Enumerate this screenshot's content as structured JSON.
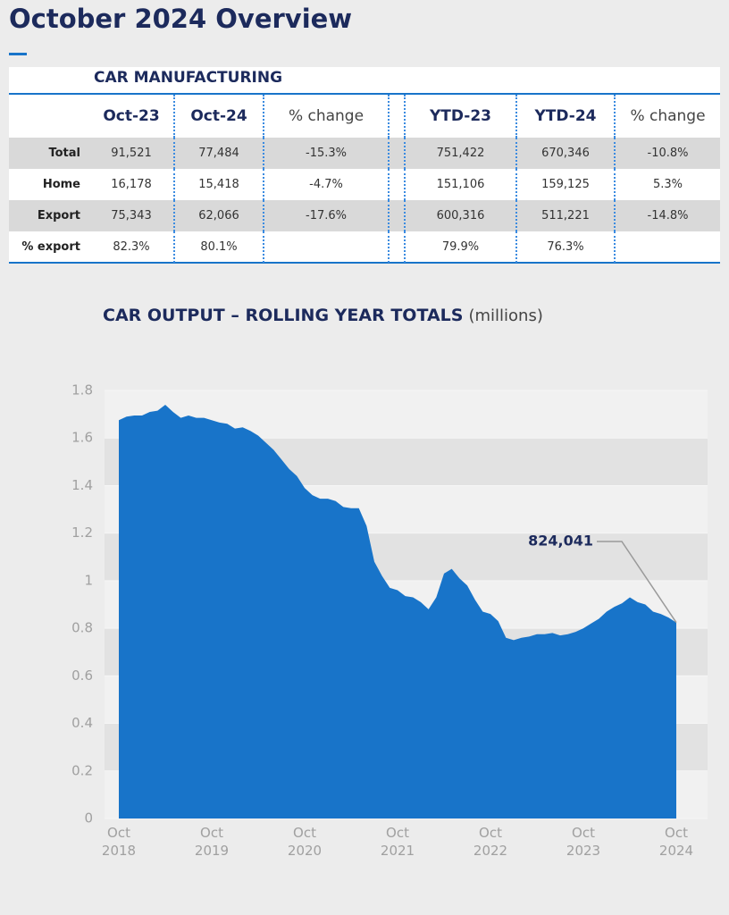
{
  "header": {
    "title": "October 2024 Overview"
  },
  "table": {
    "title": "CAR MANUFACTURING",
    "columns": [
      "Oct-23",
      "Oct-24",
      "% change",
      "YTD-23",
      "YTD-24",
      "% change"
    ],
    "rows": [
      [
        "Total",
        "91,521",
        "77,484",
        "-15.3%",
        "751,422",
        "670,346",
        "-10.8%"
      ],
      [
        "Home",
        "16,178",
        "15,418",
        "-4.7%",
        "151,106",
        "159,125",
        "5.3%"
      ],
      [
        "Export",
        "75,343",
        "62,066",
        "-17.6%",
        "600,316",
        "511,221",
        "-14.8%"
      ],
      [
        "% export",
        "82.3%",
        "80.1%",
        null,
        "79.9%",
        "76.3%",
        null
      ]
    ]
  },
  "chart_data": {
    "type": "area",
    "title": "CAR OUTPUT – ROLLING YEAR TOTALS",
    "subtitle": "(millions)",
    "color": "#1874c9",
    "x": [
      "2018-10",
      "2018-11",
      "2018-12",
      "2019-01",
      "2019-02",
      "2019-03",
      "2019-04",
      "2019-05",
      "2019-06",
      "2019-07",
      "2019-08",
      "2019-09",
      "2019-10",
      "2019-11",
      "2019-12",
      "2020-01",
      "2020-02",
      "2020-03",
      "2020-04",
      "2020-05",
      "2020-06",
      "2020-07",
      "2020-08",
      "2020-09",
      "2020-10",
      "2020-11",
      "2020-12",
      "2021-01",
      "2021-02",
      "2021-03",
      "2021-04",
      "2021-05",
      "2021-06",
      "2021-07",
      "2021-08",
      "2021-09",
      "2021-10",
      "2021-11",
      "2021-12",
      "2022-01",
      "2022-02",
      "2022-03",
      "2022-04",
      "2022-05",
      "2022-06",
      "2022-07",
      "2022-08",
      "2022-09",
      "2022-10",
      "2022-11",
      "2022-12",
      "2023-01",
      "2023-02",
      "2023-03",
      "2023-04",
      "2023-05",
      "2023-06",
      "2023-07",
      "2023-08",
      "2023-09",
      "2023-10",
      "2023-11",
      "2023-12",
      "2024-01",
      "2024-02",
      "2024-03",
      "2024-04",
      "2024-05",
      "2024-06",
      "2024-07",
      "2024-08",
      "2024-09",
      "2024-10"
    ],
    "values": [
      1.675,
      1.69,
      1.695,
      1.695,
      1.71,
      1.715,
      1.74,
      1.71,
      1.685,
      1.695,
      1.685,
      1.685,
      1.675,
      1.665,
      1.66,
      1.64,
      1.645,
      1.63,
      1.61,
      1.58,
      1.55,
      1.51,
      1.47,
      1.44,
      1.39,
      1.36,
      1.345,
      1.345,
      1.335,
      1.31,
      1.305,
      1.305,
      1.23,
      1.08,
      1.02,
      0.97,
      0.96,
      0.935,
      0.93,
      0.91,
      0.88,
      0.93,
      1.03,
      1.05,
      1.01,
      0.98,
      0.92,
      0.87,
      0.86,
      0.83,
      0.76,
      0.75,
      0.76,
      0.765,
      0.775,
      0.775,
      0.78,
      0.77,
      0.775,
      0.785,
      0.8,
      0.82,
      0.84,
      0.87,
      0.89,
      0.905,
      0.93,
      0.91,
      0.9,
      0.87,
      0.86,
      0.845,
      0.824041
    ],
    "value_labels": [
      null,
      null,
      null,
      null,
      null,
      null,
      null,
      null,
      null,
      null,
      null,
      null,
      null,
      null,
      null,
      null,
      null,
      null,
      null,
      null,
      null,
      null,
      null,
      null,
      null,
      null,
      null,
      null,
      null,
      null,
      null,
      null,
      null,
      null,
      null,
      null,
      null,
      null,
      null,
      null,
      null,
      null,
      null,
      null,
      null,
      null,
      null,
      null,
      null,
      null,
      null,
      null,
      null,
      null,
      null,
      null,
      null,
      null,
      null,
      null,
      null,
      null,
      null,
      null,
      null,
      null,
      null,
      null,
      null,
      null,
      null,
      null,
      "824,041"
    ],
    "xlim": [
      "2018-10",
      "2024-10"
    ],
    "xticks": [
      {
        "value": "2018-10",
        "label": "Oct 2018"
      },
      {
        "value": "2019-10",
        "label": "Oct 2019"
      },
      {
        "value": "2020-10",
        "label": "Oct 2020"
      },
      {
        "value": "2021-10",
        "label": "Oct 2021"
      },
      {
        "value": "2022-10",
        "label": "Oct 2022"
      },
      {
        "value": "2023-10",
        "label": "Oct 2023"
      },
      {
        "value": "2024-10",
        "label": "Oct 2024"
      }
    ],
    "ylim": [
      0,
      1.8
    ],
    "yticks": [
      0,
      0.2,
      0.4,
      0.6,
      0.8,
      1,
      1.2,
      1.4,
      1.6,
      1.8
    ],
    "grid": "bands"
  }
}
